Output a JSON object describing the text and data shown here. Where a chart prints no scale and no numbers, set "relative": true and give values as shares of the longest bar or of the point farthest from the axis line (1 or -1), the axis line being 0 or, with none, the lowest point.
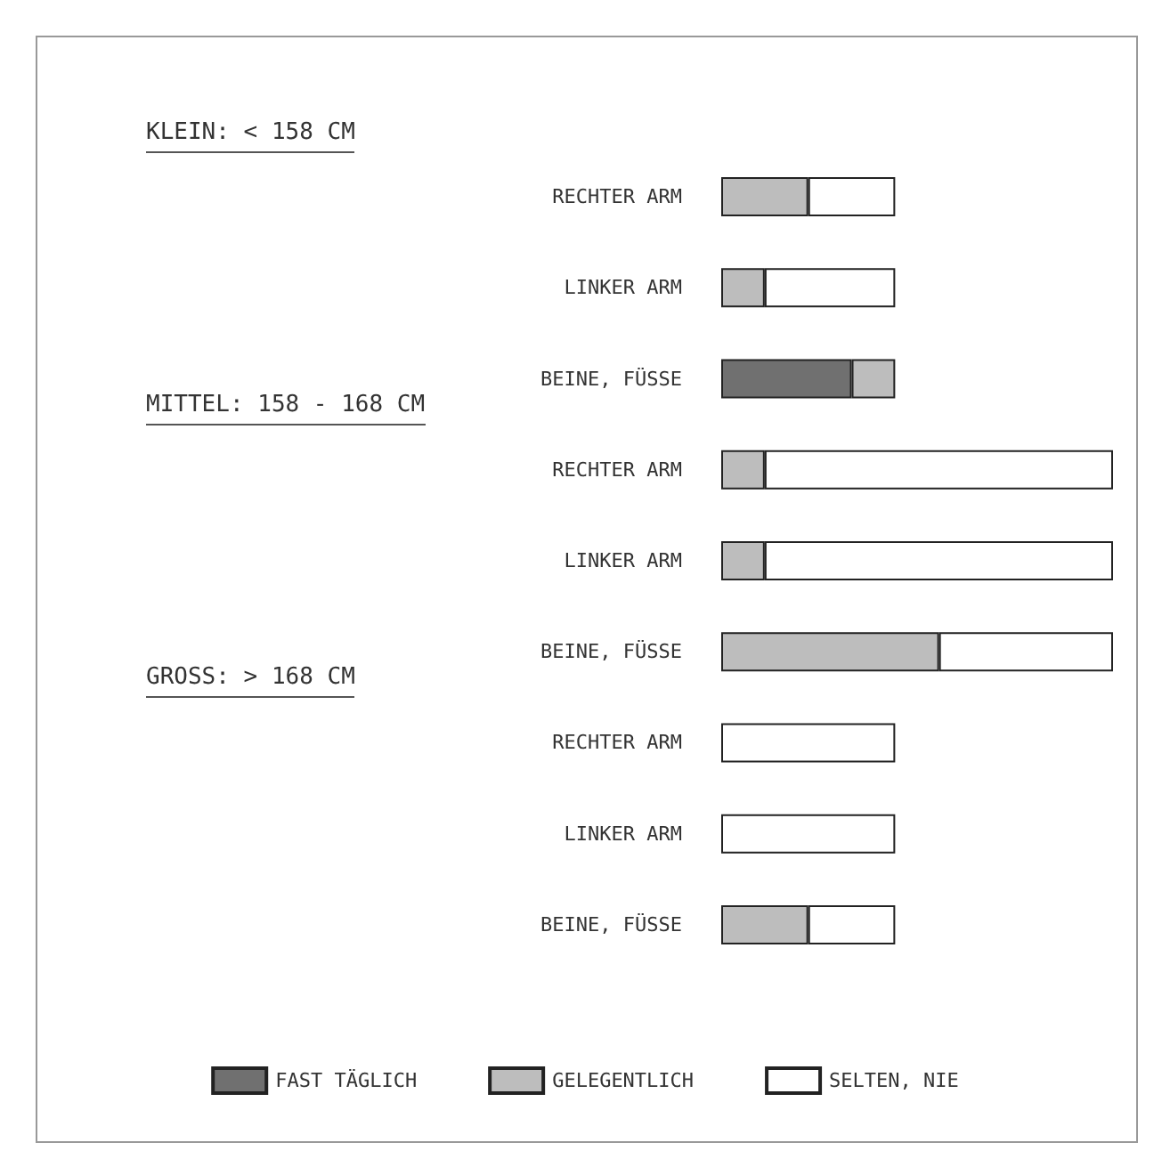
{
  "chart_data": {
    "type": "bar",
    "orientation": "horizontal",
    "stacked": true,
    "relative": true,
    "categories": [
      "RECHTER ARM",
      "LINKER ARM",
      "BEINE, FÜSSE",
      "RECHTER ARM",
      "LINKER ARM",
      "BEINE, FÜSSE",
      "RECHTER ARM",
      "LINKER ARM",
      "BEINE, FÜSSE"
    ],
    "annotations": [
      "KLEIN: < 158 CM",
      "MITTEL: 158 - 168 CM",
      "GROSS: > 168 CM"
    ],
    "series": [
      {
        "name": "FAST TÄGLICH",
        "color": "#707070",
        "values": [
          null,
          null,
          0.333,
          null,
          null,
          null,
          null,
          null,
          null
        ]
      },
      {
        "name": "GELEGENTLICH",
        "color": "#bdbdbd",
        "values": [
          0.222,
          0.111,
          0.111,
          0.111,
          0.111,
          0.556,
          null,
          null,
          0.222
        ]
      },
      {
        "name": "SELTEN, NIE",
        "color": "#ffffff",
        "values": [
          0.222,
          0.333,
          null,
          0.889,
          0.889,
          0.444,
          0.444,
          0.444,
          0.222
        ]
      }
    ],
    "legend": "bottom"
  }
}
